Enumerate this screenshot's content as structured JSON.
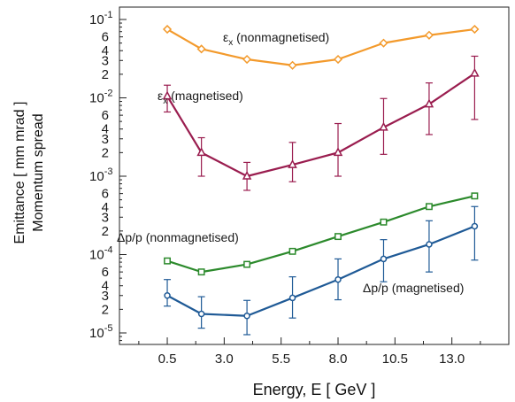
{
  "chart_data": {
    "type": "line",
    "xlabel": "Energy, E [ GeV ]",
    "ylabel_lines": [
      "Emittance [ mm mrad  ]",
      "Momentum spread"
    ],
    "yscale": "log",
    "xlim": [
      -1.6,
      15.5
    ],
    "ylim": [
      6e-06,
      0.1
    ],
    "x_ticks": [
      0.5,
      3.0,
      5.5,
      8.0,
      10.5,
      13.0
    ],
    "x_tick_labels": [
      "0.5",
      "3.0",
      "5.5",
      "8.0",
      "10.5",
      "13.0"
    ],
    "y_major_ticks": [
      {
        "value": 0.1,
        "mantissa": "10",
        "exp": "-1"
      },
      {
        "value": 0.01,
        "mantissa": "10",
        "exp": "-2"
      },
      {
        "value": 0.001,
        "mantissa": "10",
        "exp": "-3"
      },
      {
        "value": 0.0001,
        "mantissa": "10",
        "exp": "-4"
      },
      {
        "value": 1e-05,
        "mantissa": "10",
        "exp": "-5"
      }
    ],
    "y_minor_labels": [
      "2",
      "3",
      "4",
      "6"
    ],
    "x": [
      0.5,
      2.0,
      4.0,
      6.0,
      8.0,
      10.0,
      12.0,
      14.0
    ],
    "series": [
      {
        "label": "εx (nonmagnetised)",
        "color": "#f39a2c",
        "marker": "diamond",
        "values": [
          0.075,
          0.042,
          0.031,
          0.026,
          0.031,
          0.05,
          0.063,
          0.075
        ],
        "err_low": null,
        "err_high": null
      },
      {
        "label": "εx (magnetised)",
        "color": "#9a1d4f",
        "marker": "triangle",
        "values": [
          0.0105,
          0.002,
          0.001,
          0.0014,
          0.002,
          0.0042,
          0.0083,
          0.0205
        ],
        "err_low": [
          0.0066,
          0.001,
          0.00066,
          0.00085,
          0.001,
          0.0019,
          0.0034,
          0.0053
        ],
        "err_high": [
          0.0145,
          0.0031,
          0.0015,
          0.0027,
          0.0047,
          0.0098,
          0.0155,
          0.034
        ]
      },
      {
        "label": "Δp/p (nonmagnetised)",
        "color": "#2c8a2c",
        "marker": "square",
        "values": [
          8.3e-05,
          6e-05,
          7.5e-05,
          0.00011,
          0.00017,
          0.00026,
          0.00041,
          0.00056
        ],
        "err_low": null,
        "err_high": null
      },
      {
        "label": "Δp/p (magnetised)",
        "color": "#1f5a96",
        "marker": "circle",
        "values": [
          3e-05,
          1.75e-05,
          1.65e-05,
          2.8e-05,
          4.8e-05,
          8.8e-05,
          0.000135,
          0.00023
        ],
        "err_low": [
          2.2e-05,
          1.15e-05,
          9.5e-06,
          1.55e-05,
          2.65e-05,
          4.5e-05,
          6e-05,
          8.5e-05
        ],
        "err_high": [
          4.8e-05,
          2.9e-05,
          2.6e-05,
          5.2e-05,
          8.8e-05,
          0.000155,
          0.00027,
          0.00041
        ]
      }
    ],
    "annotations": [
      {
        "prefix": "ε",
        "sub": "x",
        "rest": " (nonmagnetised)"
      },
      {
        "prefix": "ε",
        "sub": "x",
        "rest": " (magnetised)"
      },
      {
        "prefix": "Δp/p (nonmagnetised)",
        "sub": "",
        "rest": ""
      },
      {
        "prefix": "Δp/p (magnetised)",
        "sub": "",
        "rest": ""
      }
    ]
  }
}
